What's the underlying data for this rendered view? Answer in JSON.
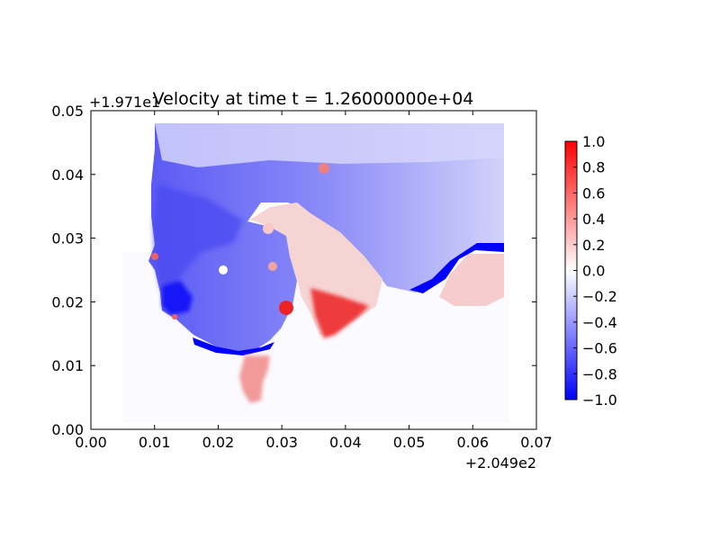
{
  "chart_data": {
    "type": "heatmap",
    "title": "Velocity at time t = 1.26000000e+04",
    "xlabel": "",
    "ylabel": "",
    "x_offset_label": "+2.049e2",
    "y_offset_label": "+1.971e1",
    "xlim": [
      0.0,
      0.07
    ],
    "ylim": [
      0.0,
      0.05
    ],
    "x_ticks": [
      "0.00",
      "0.01",
      "0.02",
      "0.03",
      "0.04",
      "0.05",
      "0.06",
      "0.07"
    ],
    "y_ticks": [
      "0.00",
      "0.01",
      "0.02",
      "0.03",
      "0.04",
      "0.05"
    ],
    "colorbar": {
      "colormap": "bwr",
      "range": [
        -1.0,
        1.0
      ],
      "ticks": [
        "1.0",
        "0.8",
        "0.6",
        "0.4",
        "0.2",
        "0.0",
        "−0.2",
        "−0.4",
        "−0.6",
        "−0.8",
        "−1.0"
      ],
      "colors": {
        "min": "#0000ff",
        "mid": "#ffffff",
        "max": "#ff0000"
      }
    },
    "grid": false,
    "legend": "colorbar-right"
  }
}
